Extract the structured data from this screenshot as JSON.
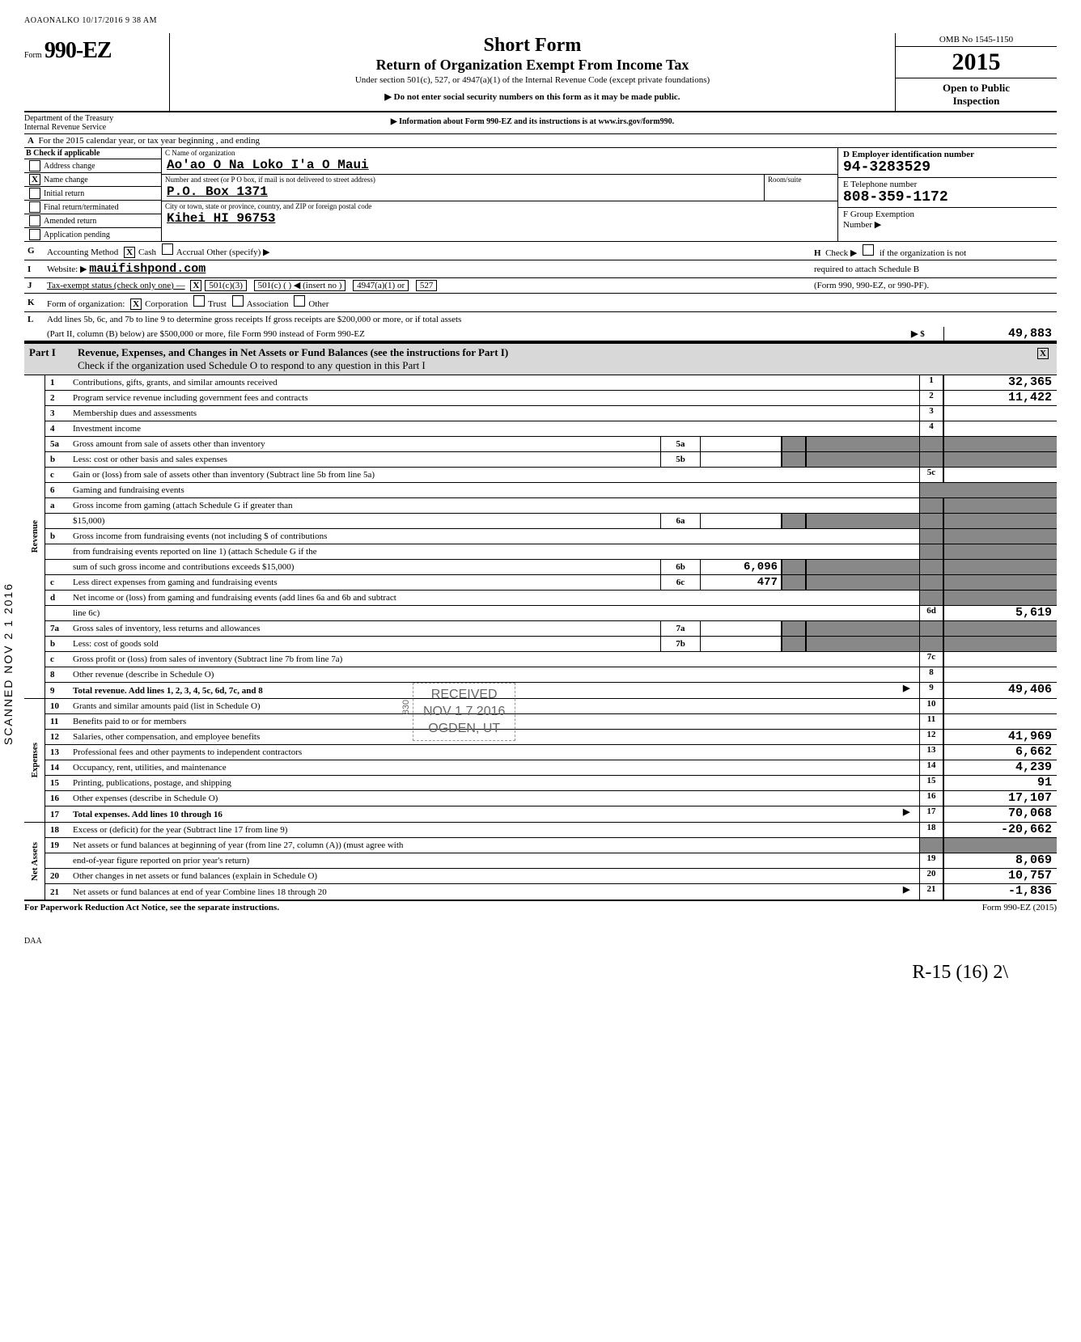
{
  "timestamp": "AOAONALKO 10/17/2016 9 38 AM",
  "form": {
    "prefix": "Form",
    "number": "990-EZ",
    "title1": "Short Form",
    "title2": "Return of Organization Exempt From Income Tax",
    "subtitle": "Under section 501(c), 527, or 4947(a)(1) of the Internal Revenue Code (except private foundations)",
    "note1": "▶ Do not enter social security numbers on this form as it may be made public.",
    "note2": "▶ Information about Form 990-EZ and its instructions is at www.irs.gov/form990.",
    "omb": "OMB No 1545-1150",
    "year": "2015",
    "inspection1": "Open to Public",
    "inspection2": "Inspection",
    "dept1": "Department of the Treasury",
    "dept2": "Internal Revenue Service"
  },
  "lineA": "For the 2015 calendar year, or tax year beginning                                        , and ending",
  "checkB": {
    "header": "Check if applicable",
    "items": [
      "Address change",
      "Name change",
      "Initial return",
      "Final return/terminated",
      "Amended return",
      "Application pending"
    ],
    "checked_index": 1
  },
  "orgC": {
    "label": "C  Name of organization",
    "name": "Ao'ao O Na Loko I'a O Maui",
    "addr_label": "Number and street (or P O  box, if mail is not delivered to street address)",
    "room_label": "Room/suite",
    "addr": "P.O. Box 1371",
    "city_label": "City or town, state or province, country, and ZIP or foreign postal code",
    "city": "Kihei                              HI  96753"
  },
  "colD": {
    "ein_label": "D  Employer identification number",
    "ein": "94-3283529",
    "tel_label": "E  Telephone number",
    "tel": "808-359-1172",
    "group_label": "F  Group Exemption",
    "group_label2": "Number  ▶"
  },
  "lineG": {
    "label": "Accounting Method",
    "cash": "Cash",
    "accrual": "Accrual  Other (specify) ▶",
    "cash_checked": "X"
  },
  "lineH": {
    "label": "Check ▶",
    "text1": "if the organization is not",
    "text2": "required to attach Schedule B",
    "text3": "(Form 990, 990-EZ, or 990-PF)."
  },
  "lineI": {
    "label": "Website: ▶",
    "value": "mauifishpond.com"
  },
  "lineJ": {
    "label": "Tax-exempt status (check only one) —",
    "opt1": "501(c)(3)",
    "opt1_checked": "X",
    "opt2": "501(c) (         ) ◀ (insert no )",
    "opt3": "4947(a)(1) or",
    "opt4": "527"
  },
  "lineK": {
    "label": "Form of organization:",
    "corp": "Corporation",
    "corp_checked": "X",
    "trust": "Trust",
    "assoc": "Association",
    "other": "Other"
  },
  "lineL": {
    "text1": "Add lines 5b, 6c, and 7b to line 9 to determine gross receipts  If gross receipts are $200,000 or more, or if total assets",
    "text2": "(Part II, column (B) below) are $500,000 or more, file Form 990 instead of Form 990-EZ",
    "arrow": "▶  $",
    "value": "49,883"
  },
  "part1": {
    "label": "Part I",
    "title": "Revenue, Expenses, and Changes in Net Assets or Fund Balances (see the instructions for Part I)",
    "sub": "Check if the organization used Schedule O to respond to any question in this Part I",
    "checked": "X"
  },
  "sidebar_scan": "SCANNED NOV 2 1 2016",
  "sections": {
    "revenue": "Revenue",
    "expenses": "Expenses",
    "netassets": "Net Assets"
  },
  "rows": [
    {
      "n": "1",
      "t": "Contributions, gifts, grants, and similar amounts received",
      "box": "1",
      "val": "32,365"
    },
    {
      "n": "2",
      "t": "Program service revenue including government fees and contracts",
      "box": "2",
      "val": "11,422"
    },
    {
      "n": "3",
      "t": "Membership dues and assessments",
      "box": "3",
      "val": ""
    },
    {
      "n": "4",
      "t": "Investment income",
      "box": "4",
      "val": ""
    },
    {
      "n": "5a",
      "t": "Gross amount from sale of assets other than inventory",
      "mid": "5a",
      "midval": "",
      "shade": true
    },
    {
      "n": "b",
      "t": "Less: cost or other basis and sales expenses",
      "mid": "5b",
      "midval": "",
      "shade": true
    },
    {
      "n": "c",
      "t": "Gain or (loss) from sale of assets other than inventory (Subtract line 5b from line 5a)",
      "box": "5c",
      "val": ""
    },
    {
      "n": "6",
      "t": "Gaming and fundraising events",
      "shade_full": true
    },
    {
      "n": "a",
      "t": "Gross income from gaming (attach Schedule G if greater than",
      "cont": true
    },
    {
      "n": "",
      "t": "$15,000)",
      "mid": "6a",
      "midval": "",
      "shade": true
    },
    {
      "n": "b",
      "t": "Gross income from fundraising events (not including  $                            of contributions",
      "cont": true
    },
    {
      "n": "",
      "t": "from fundraising events reported on line 1) (attach Schedule G if the",
      "cont": true
    },
    {
      "n": "",
      "t": "sum of such gross income and contributions exceeds $15,000)",
      "mid": "6b",
      "midval": "6,096",
      "shade": true
    },
    {
      "n": "c",
      "t": "Less  direct expenses from gaming and fundraising events",
      "mid": "6c",
      "midval": "477",
      "shade": true
    },
    {
      "n": "d",
      "t": "Net income or (loss) from gaming and fundraising events (add lines 6a and 6b and subtract",
      "cont": true
    },
    {
      "n": "",
      "t": "line 6c)",
      "box": "6d",
      "val": "5,619"
    },
    {
      "n": "7a",
      "t": "Gross sales of inventory, less returns and allowances",
      "mid": "7a",
      "midval": "",
      "shade": true
    },
    {
      "n": "b",
      "t": "Less: cost of goods sold",
      "mid": "7b",
      "midval": "",
      "shade": true
    },
    {
      "n": "c",
      "t": "Gross profit or (loss) from sales of inventory (Subtract line 7b from line 7a)",
      "box": "7c",
      "val": ""
    },
    {
      "n": "8",
      "t": "Other revenue (describe in Schedule O)",
      "box": "8",
      "val": ""
    },
    {
      "n": "9",
      "t": "Total revenue. Add lines 1, 2, 3, 4, 5c, 6d, 7c, and 8",
      "box": "9",
      "val": "49,406",
      "bold": true,
      "arrow": true
    }
  ],
  "exp_rows": [
    {
      "n": "10",
      "t": "Grants and similar amounts paid (list in Schedule O)",
      "box": "10",
      "val": ""
    },
    {
      "n": "11",
      "t": "Benefits paid to or for members",
      "box": "11",
      "val": ""
    },
    {
      "n": "12",
      "t": "Salaries, other compensation, and employee benefits",
      "box": "12",
      "val": "41,969"
    },
    {
      "n": "13",
      "t": "Professional fees and other payments to independent contractors",
      "box": "13",
      "val": "6,662"
    },
    {
      "n": "14",
      "t": "Occupancy, rent, utilities, and maintenance",
      "box": "14",
      "val": "4,239"
    },
    {
      "n": "15",
      "t": "Printing, publications, postage, and shipping",
      "box": "15",
      "val": "91"
    },
    {
      "n": "16",
      "t": "Other expenses (describe in Schedule O)",
      "box": "16",
      "val": "17,107"
    },
    {
      "n": "17",
      "t": "Total expenses. Add lines 10 through 16",
      "box": "17",
      "val": "70,068",
      "bold": true,
      "arrow": true
    }
  ],
  "na_rows": [
    {
      "n": "18",
      "t": "Excess or (deficit) for the year (Subtract line 17 from line 9)",
      "box": "18",
      "val": "-20,662"
    },
    {
      "n": "19",
      "t": "Net assets or fund balances at beginning of year (from line 27, column (A)) (must agree with",
      "cont": true
    },
    {
      "n": "",
      "t": "end-of-year figure reported on prior year's return)",
      "box": "19",
      "val": "8,069"
    },
    {
      "n": "20",
      "t": "Other changes in net assets or fund balances (explain in Schedule O)",
      "box": "20",
      "val": "10,757"
    },
    {
      "n": "21",
      "t": "Net assets or fund balances at end of year  Combine lines 18 through 20",
      "box": "21",
      "val": "-1,836",
      "arrow": true
    }
  ],
  "stamp": {
    "line1": "RECEIVED",
    "line2": "NOV 1 7 2016",
    "line3": "OGDEN, UT",
    "side": "830"
  },
  "footer": {
    "left": "For Paperwork Reduction Act Notice, see the separate instructions.",
    "right": "Form 990-EZ (2015)",
    "daa": "DAA"
  },
  "handwritten": "R-15  (16)        2\\"
}
